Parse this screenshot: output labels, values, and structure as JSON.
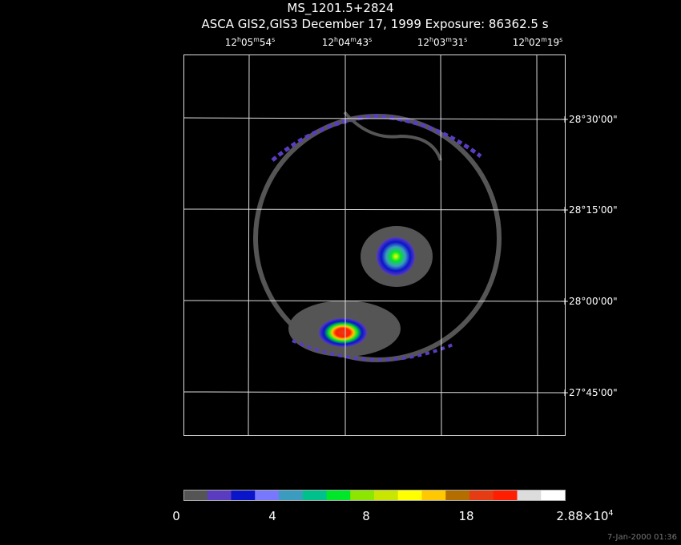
{
  "header": {
    "title": "MS_1201.5+2824",
    "subtitle": "ASCA GIS2,GIS3 December 17, 1999 Exposure: 86362.5 s"
  },
  "ra_labels": [
    [
      "12",
      "h",
      "05",
      "m",
      "54",
      "s"
    ],
    [
      "12",
      "h",
      "04",
      "m",
      "43",
      "s"
    ],
    [
      "12",
      "h",
      "03",
      "m",
      "31",
      "s"
    ],
    [
      "12",
      "h",
      "02",
      "m",
      "19",
      "s"
    ]
  ],
  "dec_labels": [
    "+28°30'00\"",
    "+28°15'00\"",
    "+28°00'00\"",
    "+27°45'00\""
  ],
  "colorbar": {
    "colors": [
      "#555555",
      "#5a3cc0",
      "#0a14c8",
      "#7878ff",
      "#3c9cc0",
      "#00c08c",
      "#00e628",
      "#8ce600",
      "#c8e600",
      "#ffff00",
      "#ffc800",
      "#b46e00",
      "#e63c14",
      "#ff1e00",
      "#dcdcdc",
      "#ffffff"
    ],
    "labels": [
      [
        "0"
      ],
      [
        "4"
      ],
      [
        "8"
      ],
      [
        "18"
      ],
      [
        "2.88×10",
        "4"
      ]
    ]
  },
  "timestamp": "7-Jan-2000 01:36"
}
